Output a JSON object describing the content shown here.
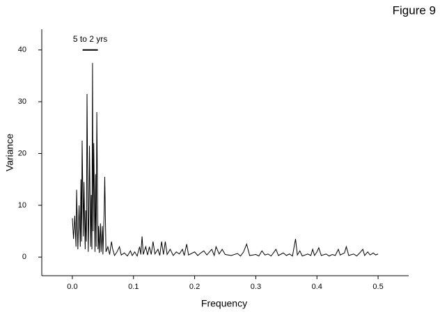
{
  "chart_data": {
    "type": "line",
    "figure_label": "Figure 9",
    "x_label": "Frequency",
    "y_label": "Variance",
    "xlim": [
      -0.05,
      0.55
    ],
    "ylim": [
      -3.6,
      44
    ],
    "xticks": [
      {
        "value": 0,
        "label": "0.0"
      },
      0.1,
      0.2,
      0.3,
      0.4,
      0.5
    ],
    "yticks": [
      0,
      10,
      20,
      30,
      40
    ],
    "grid": false,
    "annotations": [
      {
        "text": "5 to 2 yrs",
        "x": [
          0.0167,
          0.0417
        ],
        "y": 40
      }
    ],
    "series": [
      {
        "color": "#000000",
        "x": [
          0,
          0.002,
          0.004,
          0.006,
          0.007,
          0.009,
          0.011,
          0.013,
          0.014,
          0.015,
          0.016,
          0.018,
          0.019,
          0.021,
          0.022,
          0.023,
          0.024,
          0.026,
          0.027,
          0.028,
          0.03,
          0.031,
          0.032,
          0.033,
          0.034,
          0.035,
          0.037,
          0.038,
          0.039,
          0.04,
          0.042,
          0.043,
          0.044,
          0.046,
          0.047,
          0.049,
          0.05,
          0.052,
          0.053,
          0.055,
          0.058,
          0.061,
          0.064,
          0.066,
          0.069,
          0.073,
          0.077,
          0.08,
          0.085,
          0.09,
          0.095,
          0.098,
          0.102,
          0.106,
          0.11,
          0.112,
          0.114,
          0.116,
          0.12,
          0.123,
          0.126,
          0.129,
          0.132,
          0.135,
          0.14,
          0.143,
          0.146,
          0.149,
          0.152,
          0.155,
          0.16,
          0.165,
          0.17,
          0.175,
          0.18,
          0.183,
          0.187,
          0.19,
          0.2,
          0.205,
          0.21,
          0.215,
          0.22,
          0.228,
          0.232,
          0.235,
          0.24,
          0.245,
          0.25,
          0.26,
          0.27,
          0.275,
          0.28,
          0.285,
          0.29,
          0.3,
          0.305,
          0.31,
          0.315,
          0.32,
          0.325,
          0.33,
          0.333,
          0.337,
          0.345,
          0.35,
          0.355,
          0.36,
          0.365,
          0.368,
          0.372,
          0.376,
          0.385,
          0.39,
          0.393,
          0.396,
          0.4,
          0.403,
          0.407,
          0.415,
          0.42,
          0.425,
          0.43,
          0.435,
          0.438,
          0.445,
          0.448,
          0.452,
          0.46,
          0.465,
          0.47,
          0.475,
          0.478,
          0.483,
          0.487,
          0.492,
          0.496,
          0.5
        ],
        "values": [
          7.5,
          3.5,
          8,
          2,
          13,
          1.5,
          10,
          2,
          15,
          3,
          22.5,
          4,
          14.5,
          1.5,
          9,
          3,
          31.5,
          1,
          8,
          21.5,
          2,
          12,
          1.5,
          37.5,
          5,
          22,
          1,
          16,
          2,
          28,
          1.5,
          6,
          0.8,
          6.5,
          1,
          6,
          0.5,
          8.5,
          15.5,
          1,
          2,
          0.5,
          3,
          1.5,
          0.3,
          1,
          2,
          0.4,
          0.8,
          0.2,
          1.2,
          0.3,
          1,
          0.2,
          2,
          0.5,
          4,
          0.5,
          2,
          0.4,
          2,
          0.5,
          3,
          0.6,
          1.5,
          0.3,
          3,
          0.5,
          3,
          0.5,
          1.5,
          0.3,
          1,
          0.6,
          1.5,
          0.3,
          2.5,
          0.4,
          1,
          0.3,
          0.8,
          1.2,
          0.4,
          1.5,
          0.3,
          2,
          0.6,
          1.5,
          0.5,
          0.3,
          0.7,
          0.2,
          1,
          2.5,
          0.3,
          0.5,
          0.2,
          1.2,
          0.4,
          0.6,
          0.2,
          1,
          1.5,
          0.3,
          0.8,
          0.3,
          0.6,
          0.2,
          3.5,
          0.4,
          1.2,
          0.2,
          0.6,
          0.3,
          1.5,
          0.3,
          1,
          1.8,
          0.3,
          0.6,
          0.2,
          0.5,
          0.3,
          1.5,
          0.4,
          0.8,
          2,
          0.3,
          0.6,
          0.2,
          0.8,
          1.5,
          0.3,
          1,
          0.4,
          0.8,
          0.4,
          0.6
        ]
      }
    ]
  }
}
